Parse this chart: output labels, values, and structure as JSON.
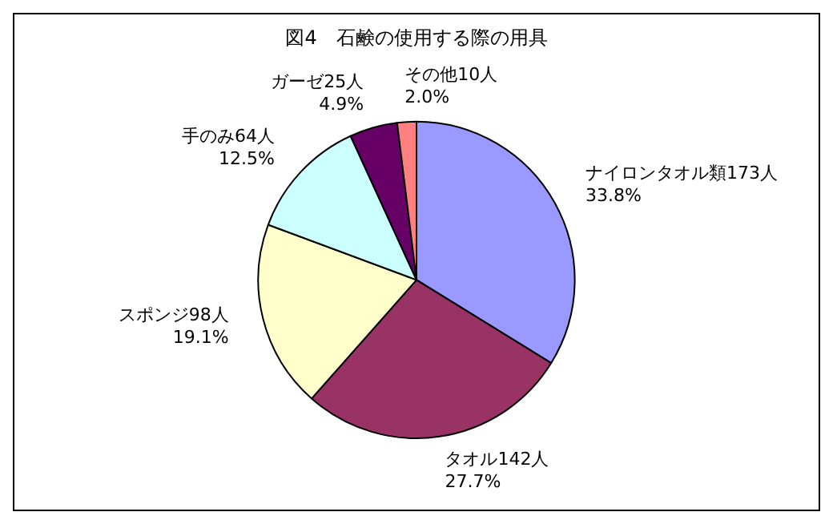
{
  "chart_data": {
    "type": "pie",
    "title": "図4　石鹸の使用する際の用具",
    "categories": [
      "ナイロンタオル類",
      "タオル",
      "スポンジ",
      "手のみ",
      "ガーゼ",
      "その他"
    ],
    "values": [
      173,
      142,
      98,
      64,
      25,
      10
    ],
    "value_labels": [
      "173人\n33.8%",
      "142人\n27.7%",
      "98人\n19.1%",
      "64人\n12.5%",
      "25人\n4.9%",
      "10人\n2.0%"
    ],
    "colors": [
      "#9999ff",
      "#993366",
      "#ffffcc",
      "#ccffff",
      "#660066",
      "#ff8080"
    ],
    "legend": false
  }
}
